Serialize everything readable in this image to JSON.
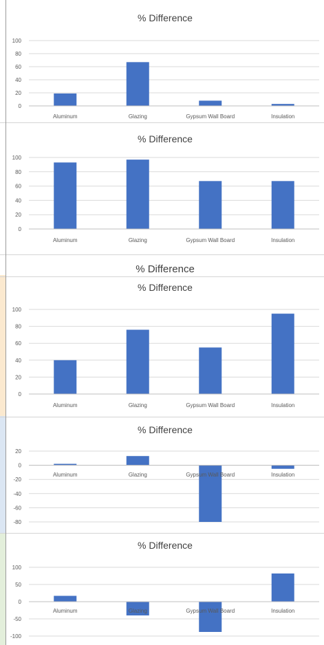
{
  "stray_title": "% Difference",
  "chart_data": [
    {
      "type": "bar",
      "title": "% Difference",
      "categories": [
        "Aluminum",
        "Glazing",
        "Gypsum Wall Board",
        "Insulation"
      ],
      "values": [
        19,
        67,
        8,
        3
      ],
      "ylim": [
        0,
        100
      ],
      "yticks": [
        0,
        20,
        40,
        60,
        80,
        100
      ],
      "grid": true,
      "bar_color": "#4472c4"
    },
    {
      "type": "bar",
      "title": "% Difference",
      "categories": [
        "Aluminum",
        "Glazing",
        "Gypsum Wall Board",
        "Insulation"
      ],
      "values": [
        93,
        97,
        67,
        67
      ],
      "ylim": [
        0,
        100
      ],
      "yticks": [
        0,
        20,
        40,
        60,
        80,
        100
      ],
      "grid": true,
      "bar_color": "#4472c4"
    },
    {
      "type": "bar",
      "title": "% Difference",
      "categories": [
        "Aluminum",
        "Glazing",
        "Gypsum Wall Board",
        "Insulation"
      ],
      "values": [
        40,
        76,
        55,
        95
      ],
      "ylim": [
        0,
        100
      ],
      "yticks": [
        0,
        20,
        40,
        60,
        80,
        100
      ],
      "grid": true,
      "bar_color": "#4472c4"
    },
    {
      "type": "bar",
      "title": "% Difference",
      "categories": [
        "Aluminum",
        "Glazing",
        "Gypsum Wall Board",
        "Insulation"
      ],
      "values": [
        2,
        13,
        -80,
        -5
      ],
      "ylim": [
        -80,
        20
      ],
      "yticks": [
        -80,
        -60,
        -40,
        -20,
        0,
        20
      ],
      "grid": true,
      "bar_color": "#4472c4"
    },
    {
      "type": "bar",
      "title": "% Difference",
      "categories": [
        "Aluminum",
        "Glazing",
        "Gypsum Wall Board",
        "Insulation"
      ],
      "values": [
        17,
        -40,
        -88,
        82
      ],
      "ylim": [
        -100,
        100
      ],
      "yticks": [
        -100,
        -50,
        0,
        50,
        100
      ],
      "grid": true,
      "bar_color": "#4472c4"
    }
  ]
}
